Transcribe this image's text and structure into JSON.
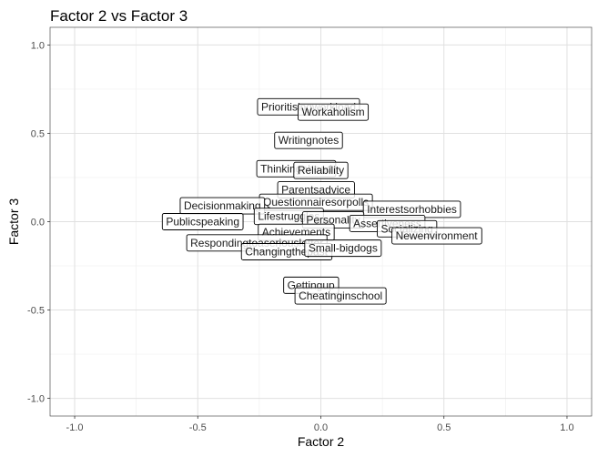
{
  "chart_data": {
    "type": "scatter",
    "title": "Factor 2 vs Factor 3",
    "xlabel": "Factor 2",
    "ylabel": "Factor 3",
    "xlim": [
      -1.1,
      1.1
    ],
    "ylim": [
      -1.1,
      1.1
    ],
    "x_ticks": [
      -1.0,
      -0.5,
      0.0,
      0.5,
      1.0
    ],
    "y_ticks": [
      -1.0,
      -0.5,
      0.0,
      0.5,
      1.0
    ],
    "x_tick_labels": [
      "-1.0",
      "-0.5",
      "0.0",
      "0.5",
      "1.0"
    ],
    "y_tick_labels": [
      "-1.0",
      "-0.5",
      "0.0",
      "0.5",
      "1.0"
    ],
    "grid": true,
    "points": [
      {
        "label": "Prioritisingworkload",
        "x": -0.05,
        "y": 0.65
      },
      {
        "label": "Workaholism",
        "x": 0.05,
        "y": 0.62
      },
      {
        "label": "Writingnotes",
        "x": -0.05,
        "y": 0.46
      },
      {
        "label": "Thinkingahead",
        "x": -0.1,
        "y": 0.3
      },
      {
        "label": "Reliability",
        "x": 0.0,
        "y": 0.29
      },
      {
        "label": "Parentsadvice",
        "x": -0.02,
        "y": 0.18
      },
      {
        "label": "Questionnairesorpolls",
        "x": -0.02,
        "y": 0.11
      },
      {
        "label": "Decisionmaking",
        "x": -0.4,
        "y": 0.09
      },
      {
        "label": "Interestsorhobbies",
        "x": 0.37,
        "y": 0.07
      },
      {
        "label": "Publicspeaking",
        "x": -0.48,
        "y": 0.0
      },
      {
        "label": "Lifestruggles",
        "x": -0.13,
        "y": 0.03
      },
      {
        "label": "Personality",
        "x": 0.05,
        "y": 0.01
      },
      {
        "label": "Assertiveness",
        "x": 0.27,
        "y": -0.01
      },
      {
        "label": "Socializing",
        "x": 0.35,
        "y": -0.04
      },
      {
        "label": "Newenvironment",
        "x": 0.47,
        "y": -0.08
      },
      {
        "label": "Achievements",
        "x": -0.1,
        "y": -0.06
      },
      {
        "label": "Respondingtoaseriousletter",
        "x": -0.26,
        "y": -0.12
      },
      {
        "label": "Changingthepast",
        "x": -0.14,
        "y": -0.17
      },
      {
        "label": "Small-bigdogs",
        "x": 0.09,
        "y": -0.15
      },
      {
        "label": "Gettingup",
        "x": -0.04,
        "y": -0.36
      },
      {
        "label": "Cheatinginschool",
        "x": 0.08,
        "y": -0.42
      }
    ]
  }
}
